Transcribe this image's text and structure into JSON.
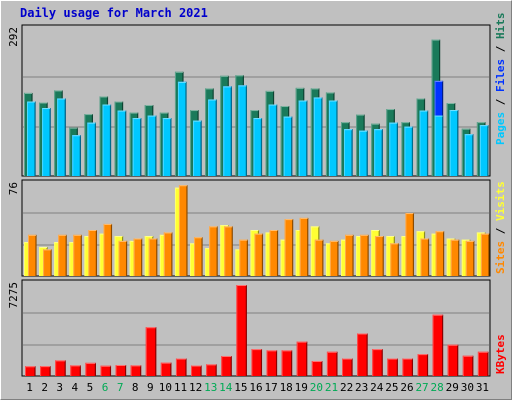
{
  "title": "Daily usage for March 2021",
  "colors": {
    "hits": "#1a7a5a",
    "files": "#0033ff",
    "pages": "#00c8ff",
    "visits": "#ffff33",
    "sites": "#ff8800",
    "kbytes": "#ff0000",
    "weekend": "#00aa55",
    "plot_bg": "#c0c0c0"
  },
  "chart_data": [
    {
      "type": "bar",
      "panel": "hits-files-pages",
      "ymax_label": "292",
      "ylim": [
        0,
        292
      ],
      "legend": [
        "Pages",
        "Files",
        "Hits"
      ],
      "categories": [
        "1",
        "2",
        "3",
        "4",
        "5",
        "6",
        "7",
        "8",
        "9",
        "10",
        "11",
        "12",
        "13",
        "14",
        "15",
        "16",
        "17",
        "18",
        "19",
        "20",
        "21",
        "22",
        "23",
        "24",
        "25",
        "26",
        "27",
        "28",
        "29",
        "30",
        "31"
      ],
      "series": [
        {
          "name": "Hits",
          "values": [
            165,
            146,
            170,
            96,
            123,
            158,
            148,
            126,
            141,
            126,
            207,
            131,
            174,
            199,
            200,
            131,
            169,
            139,
            175,
            174,
            166,
            107,
            122,
            104,
            133,
            107,
            154,
            271,
            145,
            94,
            107
          ]
        },
        {
          "name": "Files",
          "values": [
            148,
            135,
            154,
            81,
            106,
            142,
            130,
            115,
            120,
            115,
            187,
            110,
            152,
            178,
            180,
            115,
            142,
            118,
            150,
            156,
            150,
            93,
            90,
            93,
            106,
            98,
            130,
            189,
            131,
            83,
            101
          ]
        },
        {
          "name": "Pages",
          "values": [
            148,
            135,
            154,
            81,
            106,
            142,
            130,
            115,
            120,
            115,
            187,
            110,
            152,
            178,
            180,
            115,
            142,
            118,
            150,
            156,
            150,
            93,
            90,
            93,
            106,
            98,
            130,
            120,
            131,
            83,
            101
          ]
        }
      ]
    },
    {
      "type": "bar",
      "panel": "visits-sites",
      "ymax_label": "76",
      "ylim": [
        0,
        76
      ],
      "legend": [
        "Sites",
        "Visits"
      ],
      "series": [
        {
          "name": "Visits",
          "values": [
            28,
            24,
            28,
            28,
            33,
            35,
            33,
            29,
            33,
            34,
            73,
            27,
            23,
            42,
            22,
            38,
            36,
            30,
            38,
            41,
            27,
            30,
            33,
            38,
            33,
            33,
            37,
            35,
            31,
            30,
            36
          ]
        },
        {
          "name": "Sites",
          "values": [
            34,
            22,
            34,
            34,
            38,
            43,
            29,
            31,
            31,
            36,
            75,
            32,
            41,
            41,
            30,
            35,
            38,
            47,
            48,
            30,
            29,
            34,
            34,
            33,
            27,
            52,
            31,
            37,
            30,
            29,
            35
          ]
        }
      ]
    },
    {
      "type": "bar",
      "panel": "kbytes",
      "ymax_label": "7275",
      "ylim": [
        0,
        7275
      ],
      "legend": [
        "KBytes"
      ],
      "series": [
        {
          "name": "KBytes",
          "values": [
            780,
            790,
            1250,
            850,
            1050,
            820,
            880,
            850,
            3900,
            1070,
            1400,
            840,
            930,
            1600,
            7275,
            2150,
            2050,
            2050,
            2750,
            1200,
            1940,
            1400,
            3400,
            2150,
            1400,
            1400,
            1750,
            4900,
            2500,
            1620,
            1940
          ]
        }
      ]
    }
  ]
}
